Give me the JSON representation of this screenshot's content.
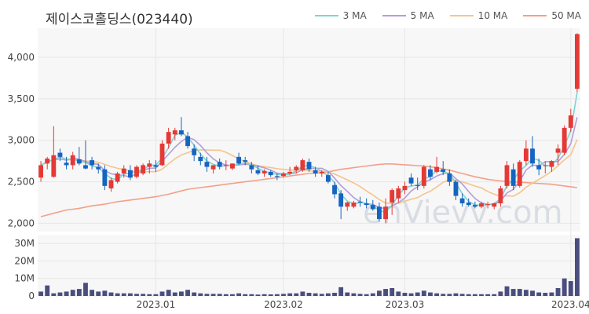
{
  "title": "제이스코홀딩스(023440)",
  "watermark": "enVievv.com",
  "legend": [
    {
      "label": "3 MA",
      "color": "#7fd3cf"
    },
    {
      "label": "5 MA",
      "color": "#b39ddb"
    },
    {
      "label": "10 MA",
      "color": "#f5c48c"
    },
    {
      "label": "50 MA",
      "color": "#f2a08a"
    }
  ],
  "colors": {
    "up": "#e53935",
    "down": "#1565c0",
    "volume": "#4a4e7e",
    "grid": "#e6e6e6",
    "panel": "#f2f2f2"
  },
  "chart_data": {
    "type": "candlestick",
    "title": "제이스코홀딩스(023440)",
    "price_axis": {
      "ticks": [
        2000,
        2500,
        3000,
        3500,
        4000
      ],
      "tick_labels": [
        "2,000",
        "2,500",
        "3,000",
        "3,500",
        "4,000"
      ],
      "ylim": [
        1900,
        4350
      ]
    },
    "volume_axis": {
      "ticks": [
        0,
        10000000,
        20000000,
        30000000
      ],
      "tick_labels": [
        "0",
        "10M",
        "20M",
        "30M"
      ],
      "ylim": [
        0,
        35000000
      ]
    },
    "x_tick_labels": [
      {
        "label": "2023.01",
        "index": 18
      },
      {
        "label": "2023.02",
        "index": 38
      },
      {
        "label": "2023.03",
        "index": 57
      },
      {
        "label": "2023.04",
        "index": 83
      }
    ],
    "candles": [
      [
        2550,
        2750,
        2500,
        2700
      ],
      [
        2720,
        2800,
        2650,
        2780
      ],
      [
        2560,
        3170,
        2550,
        2820
      ],
      [
        2850,
        2900,
        2750,
        2800
      ],
      [
        2730,
        2800,
        2650,
        2700
      ],
      [
        2700,
        2860,
        2650,
        2820
      ],
      [
        2770,
        2920,
        2700,
        2720
      ],
      [
        2700,
        3000,
        2650,
        2660
      ],
      [
        2760,
        2800,
        2650,
        2700
      ],
      [
        2680,
        2720,
        2600,
        2650
      ],
      [
        2650,
        2700,
        2400,
        2450
      ],
      [
        2420,
        2550,
        2380,
        2520
      ],
      [
        2500,
        2620,
        2480,
        2600
      ],
      [
        2600,
        2700,
        2550,
        2660
      ],
      [
        2640,
        2700,
        2520,
        2550
      ],
      [
        2560,
        2700,
        2540,
        2680
      ],
      [
        2600,
        2720,
        2580,
        2700
      ],
      [
        2680,
        2760,
        2600,
        2720
      ],
      [
        2700,
        2760,
        2620,
        2680
      ],
      [
        2700,
        3000,
        2690,
        2960
      ],
      [
        2960,
        3150,
        2900,
        3100
      ],
      [
        3070,
        3150,
        3000,
        3120
      ],
      [
        3120,
        3280,
        3050,
        3070
      ],
      [
        3050,
        3100,
        2900,
        2930
      ],
      [
        2900,
        2950,
        2750,
        2820
      ],
      [
        2800,
        2850,
        2700,
        2750
      ],
      [
        2740,
        2800,
        2620,
        2680
      ],
      [
        2650,
        2700,
        2600,
        2700
      ],
      [
        2740,
        2780,
        2650,
        2680
      ],
      [
        2700,
        2760,
        2640,
        2700
      ],
      [
        2660,
        2720,
        2640,
        2720
      ],
      [
        2800,
        2850,
        2700,
        2720
      ],
      [
        2760,
        2800,
        2700,
        2740
      ],
      [
        2700,
        2740,
        2600,
        2650
      ],
      [
        2640,
        2700,
        2580,
        2600
      ],
      [
        2600,
        2650,
        2560,
        2630
      ],
      [
        2620,
        2640,
        2560,
        2580
      ],
      [
        2570,
        2600,
        2520,
        2560
      ],
      [
        2570,
        2620,
        2550,
        2600
      ],
      [
        2600,
        2680,
        2580,
        2620
      ],
      [
        2640,
        2700,
        2600,
        2680
      ],
      [
        2640,
        2780,
        2620,
        2760
      ],
      [
        2740,
        2780,
        2620,
        2650
      ],
      [
        2640,
        2680,
        2560,
        2600
      ],
      [
        2600,
        2640,
        2560,
        2620
      ],
      [
        2580,
        2620,
        2480,
        2500
      ],
      [
        2460,
        2500,
        2300,
        2350
      ],
      [
        2360,
        2400,
        2050,
        2200
      ],
      [
        2200,
        2260,
        2150,
        2250
      ],
      [
        2200,
        2270,
        2180,
        2250
      ],
      [
        2260,
        2320,
        2200,
        2250
      ],
      [
        2240,
        2300,
        2180,
        2220
      ],
      [
        2220,
        2280,
        2150,
        2170
      ],
      [
        2200,
        2250,
        2020,
        2050
      ],
      [
        2050,
        2300,
        2000,
        2200
      ],
      [
        2250,
        2420,
        2100,
        2400
      ],
      [
        2300,
        2450,
        2250,
        2420
      ],
      [
        2400,
        2500,
        2350,
        2450
      ],
      [
        2550,
        2600,
        2450,
        2480
      ],
      [
        2460,
        2550,
        2400,
        2450
      ],
      [
        2450,
        2700,
        2420,
        2680
      ],
      [
        2650,
        2700,
        2520,
        2560
      ],
      [
        2620,
        2800,
        2600,
        2680
      ],
      [
        2650,
        2750,
        2580,
        2620
      ],
      [
        2600,
        2650,
        2450,
        2500
      ],
      [
        2500,
        2520,
        2280,
        2330
      ],
      [
        2300,
        2360,
        2200,
        2240
      ],
      [
        2250,
        2300,
        2200,
        2220
      ],
      [
        2220,
        2260,
        2180,
        2200
      ],
      [
        2200,
        2260,
        2180,
        2240
      ],
      [
        2220,
        2260,
        2180,
        2230
      ],
      [
        2200,
        2250,
        2170,
        2240
      ],
      [
        2240,
        2450,
        2200,
        2420
      ],
      [
        2450,
        2750,
        2420,
        2700
      ],
      [
        2650,
        2720,
        2400,
        2450
      ],
      [
        2450,
        2760,
        2430,
        2740
      ],
      [
        2750,
        3000,
        2700,
        2900
      ],
      [
        2900,
        3050,
        2680,
        2720
      ],
      [
        2700,
        2780,
        2580,
        2650
      ],
      [
        2700,
        2750,
        2600,
        2700
      ],
      [
        2680,
        2760,
        2620,
        2750
      ],
      [
        2850,
        2950,
        2700,
        2900
      ],
      [
        2850,
        3180,
        2820,
        3150
      ],
      [
        3150,
        3380,
        3100,
        3300
      ],
      [
        3620,
        4290,
        3580,
        4280
      ]
    ],
    "moving_averages": [
      {
        "name": "3 MA",
        "window": 3
      },
      {
        "name": "5 MA",
        "window": 5
      },
      {
        "name": "10 MA",
        "window": 10
      },
      {
        "name": "50 MA",
        "window": 50,
        "values": [
          2080,
          2100,
          2120,
          2140,
          2160,
          2170,
          2180,
          2195,
          2210,
          2220,
          2230,
          2245,
          2260,
          2270,
          2280,
          2290,
          2300,
          2310,
          2320,
          2335,
          2350,
          2370,
          2390,
          2410,
          2420,
          2430,
          2440,
          2450,
          2460,
          2470,
          2480,
          2490,
          2500,
          2510,
          2520,
          2530,
          2540,
          2550,
          2560,
          2570,
          2580,
          2590,
          2600,
          2605,
          2610,
          2620,
          2635,
          2650,
          2660,
          2670,
          2680,
          2690,
          2700,
          2710,
          2715,
          2715,
          2710,
          2705,
          2700,
          2695,
          2690,
          2680,
          2670,
          2655,
          2640,
          2620,
          2600,
          2580,
          2560,
          2545,
          2530,
          2520,
          2510,
          2505,
          2500,
          2495,
          2490,
          2485,
          2480,
          2475,
          2470,
          2460,
          2450,
          2440,
          2430
        ]
      }
    ],
    "volume": [
      2500000,
      6000000,
      1500000,
      2000000,
      2500000,
      3500000,
      4000000,
      7500000,
      3500000,
      2500000,
      3000000,
      2000000,
      1500000,
      1500000,
      1500000,
      1200000,
      1200000,
      1000000,
      1000000,
      2500000,
      3500000,
      2000000,
      2500000,
      3500000,
      2000000,
      1500000,
      1200000,
      1200000,
      1200000,
      1000000,
      1000000,
      1500000,
      1000000,
      1000000,
      800000,
      1000000,
      900000,
      1000000,
      1200000,
      1500000,
      1500000,
      2500000,
      1800000,
      1500000,
      1200000,
      1500000,
      1800000,
      5000000,
      2000000,
      1500000,
      1200000,
      1000000,
      1500000,
      3000000,
      4000000,
      4500000,
      2500000,
      1800000,
      1500000,
      2000000,
      3000000,
      2000000,
      1500000,
      1200000,
      1200000,
      1500000,
      1200000,
      1000000,
      1000000,
      1000000,
      1000000,
      1000000,
      2500000,
      5500000,
      4000000,
      4000000,
      3500000,
      3000000,
      2000000,
      1800000,
      2000000,
      4500000,
      10000000,
      8500000,
      33000000
    ]
  }
}
